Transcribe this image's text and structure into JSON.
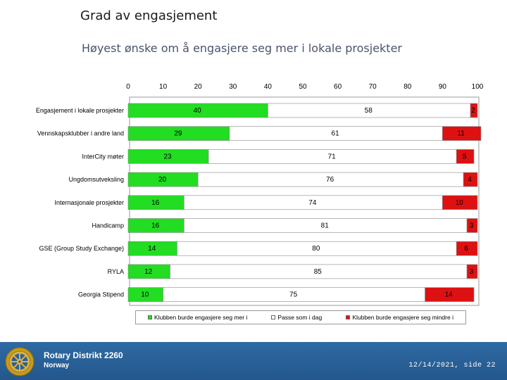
{
  "slide": {
    "title": "Grad av engasjement",
    "subtitle": "Høyest ønske om å engasjere seg mer i lokale prosjekter"
  },
  "colors": {
    "more": "#22dd22",
    "same": "#ffffff",
    "less": "#dd1111",
    "footer": "#2a619a"
  },
  "chart_data": {
    "type": "bar",
    "orientation": "horizontal",
    "stacked": true,
    "xlim": [
      0,
      100
    ],
    "xticks": [
      0,
      10,
      20,
      30,
      40,
      50,
      60,
      70,
      80,
      90,
      100
    ],
    "categories": [
      "Engasjement i lokale prosjekter",
      "Vennskapsklubber i andre land",
      "InterCity møter",
      "Ungdomsutveksling",
      "Internasjonale prosjekter",
      "Handicamp",
      "GSE (Group Study Exchange)",
      "RYLA",
      "Georgia Stipend"
    ],
    "series": [
      {
        "name": "Klubben burde engasjere seg mer i",
        "color": "#22dd22",
        "values": [
          40,
          29,
          23,
          20,
          16,
          16,
          14,
          12,
          10
        ]
      },
      {
        "name": "Passe som i dag",
        "color": "#ffffff",
        "values": [
          58,
          61,
          71,
          76,
          74,
          81,
          80,
          85,
          75
        ]
      },
      {
        "name": "Klubben burde engasjere seg mindre i",
        "color": "#dd1111",
        "values": [
          2,
          11,
          5,
          4,
          10,
          3,
          6,
          3,
          14
        ]
      }
    ],
    "legend_position": "bottom"
  },
  "footer": {
    "org": "Rotary Distrikt 2260",
    "country": "Norway",
    "date_page": "12/14/2021, side 22"
  }
}
